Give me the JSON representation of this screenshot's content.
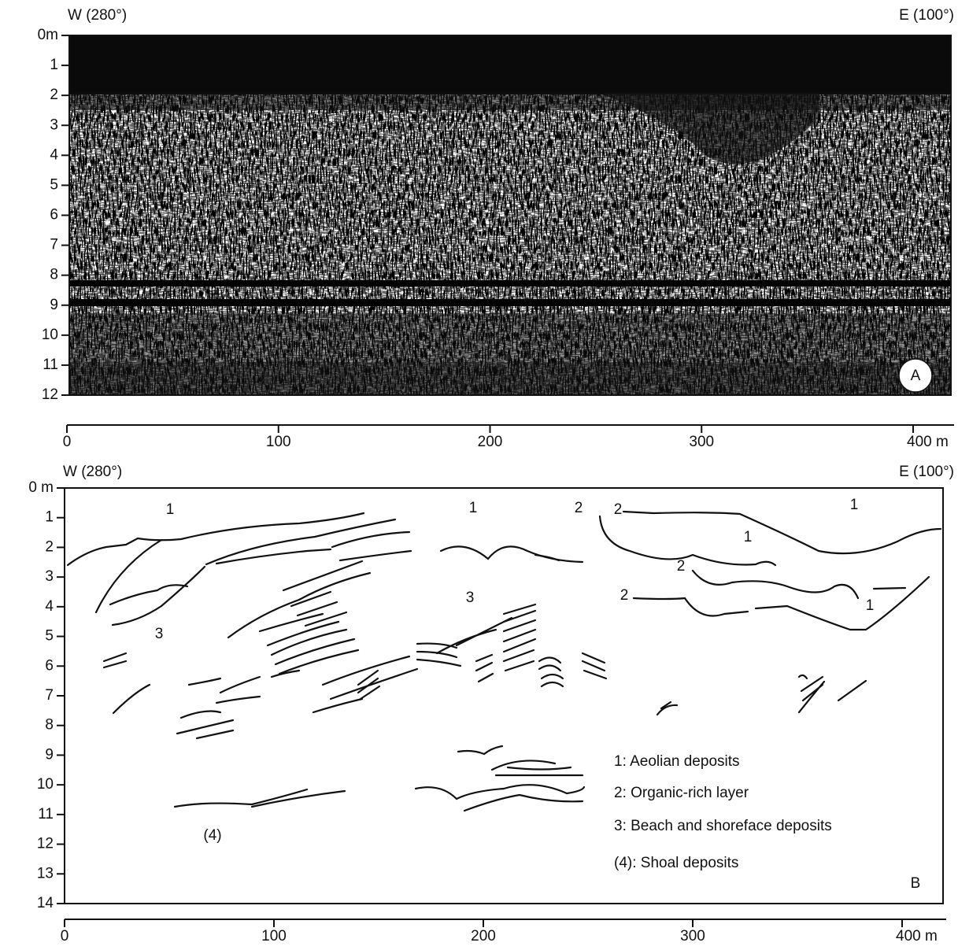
{
  "panels": [
    {
      "label": "A",
      "west": "W (280°)",
      "east": "E (100°)",
      "depth_ticks": [
        "0m",
        "1",
        "2",
        "3",
        "4",
        "5",
        "6",
        "7",
        "8",
        "9",
        "10",
        "11",
        "12"
      ],
      "distance_ticks": [
        "0",
        "100",
        "200",
        "300",
        "400 m"
      ]
    },
    {
      "label": "B",
      "west": "W (280°)",
      "east": "E (100°)",
      "depth_ticks": [
        "0 m",
        "1",
        "2",
        "3",
        "4",
        "5",
        "6",
        "7",
        "8",
        "9",
        "10",
        "11",
        "12",
        "13",
        "14"
      ],
      "distance_ticks": [
        "0",
        "100",
        "200",
        "300",
        "400 m"
      ],
      "unit_labels": [
        "1",
        "1",
        "2",
        "2",
        "1",
        "1",
        "2",
        "2",
        "1",
        "3",
        "3",
        "(4)"
      ]
    }
  ],
  "legend": [
    "1: Aeolian deposits",
    "2: Organic-rich layer",
    "3: Beach and shoreface deposits",
    "(4): Shoal deposits"
  ]
}
